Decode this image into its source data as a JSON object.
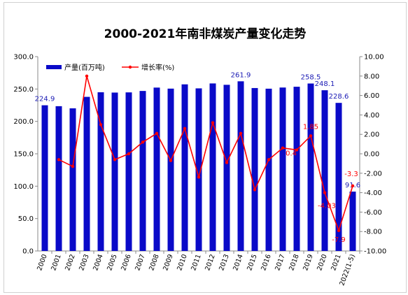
{
  "chart_data": {
    "type": "bar",
    "title": "2000-2021年南非煤炭产量变化走势",
    "categories": [
      "2000",
      "2001",
      "2002",
      "2003",
      "2004",
      "2005",
      "2006",
      "2007",
      "2008",
      "2009",
      "2010",
      "2011",
      "2012",
      "2013",
      "2014",
      "2015",
      "2016",
      "2017",
      "2018",
      "2019",
      "2020",
      "2021",
      "2022(1-5)"
    ],
    "series": [
      {
        "name": "产量(百万吨)",
        "type": "bar",
        "axis": "left",
        "color": "#0a0ac8",
        "values": [
          224.9,
          223.5,
          220.2,
          237.9,
          245.0,
          244.5,
          244.8,
          247.0,
          252.2,
          250.6,
          257.2,
          251.0,
          258.6,
          256.5,
          261.9,
          251.5,
          250.5,
          252.3,
          253.5,
          258.5,
          248.1,
          228.6,
          91.6
        ],
        "labels": [
          "224.9",
          "",
          "",
          "",
          "",
          "",
          "",
          "",
          "",
          "",
          "",
          "",
          "",
          "",
          "261.9",
          "",
          "",
          "",
          "",
          "258.5",
          "248.1",
          "228.6",
          "91.6"
        ]
      },
      {
        "name": "增长率(%)",
        "type": "line",
        "axis": "right",
        "color": "#ff0000",
        "values": [
          null,
          -0.6,
          -1.3,
          8.0,
          3.0,
          -0.6,
          0.0,
          1.2,
          2.1,
          -0.7,
          2.6,
          -2.4,
          3.2,
          -0.9,
          2.1,
          -3.7,
          -0.6,
          0.6,
          0.4,
          1.85,
          -4.0,
          -7.9,
          -3.3
        ],
        "labels": [
          "",
          "",
          "",
          "",
          "",
          "",
          "",
          "",
          "",
          "",
          "",
          "",
          "",
          "",
          "",
          "",
          "",
          "",
          "0.4",
          "1.85",
          "-4.03",
          "-7.9",
          "-3.3"
        ]
      }
    ],
    "y_left": {
      "min": 0,
      "max": 300,
      "step": 50,
      "ticks": [
        "0.0",
        "50.0",
        "100.0",
        "150.0",
        "200.0",
        "250.0",
        "300.0"
      ]
    },
    "y_right": {
      "min": -10,
      "max": 10,
      "step": 2,
      "ticks": [
        "-10.00",
        "-8.00",
        "-6.00",
        "-4.00",
        "-2.00",
        "0.00",
        "2.00",
        "4.00",
        "6.00",
        "8.00",
        "10.00"
      ]
    },
    "legend": {
      "position": "top-left"
    },
    "grid": false
  }
}
